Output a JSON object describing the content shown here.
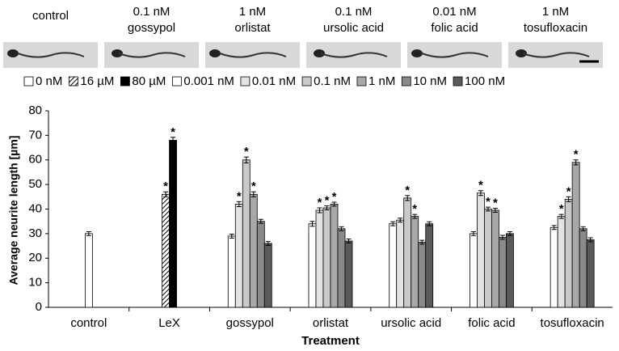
{
  "image_panels": [
    {
      "label": [
        "control"
      ]
    },
    {
      "label": [
        "0.1 nM",
        "gossypol"
      ]
    },
    {
      "label": [
        "1 nM",
        "orlistat"
      ]
    },
    {
      "label": [
        "0.1 nM",
        "ursolic acid"
      ]
    },
    {
      "label": [
        "0.01 nM",
        "folic acid"
      ]
    },
    {
      "label": [
        "1 nM",
        "tosufloxacin"
      ]
    }
  ],
  "chart_data": {
    "type": "bar",
    "x_label": "Treatment",
    "y_label": "Average neurite length [µm]",
    "categories": [
      "control",
      "LeX",
      "gossypol",
      "orlistat",
      "ursolic acid",
      "folic acid",
      "tosufloxacin"
    ],
    "ylim": [
      0,
      80
    ],
    "yticks": [
      0,
      10,
      20,
      30,
      40,
      50,
      60,
      70,
      80
    ],
    "grid": false,
    "series": [
      {
        "name": "0 nM",
        "color": "#ffffff",
        "values": [
          30,
          null,
          null,
          null,
          null,
          null,
          null
        ],
        "errors": [
          0.8,
          null,
          null,
          null,
          null,
          null,
          null
        ],
        "annotations": [
          null,
          null,
          null,
          null,
          null,
          null,
          null
        ]
      },
      {
        "name": "16 µM",
        "color": "#000000",
        "pattern": "hatched",
        "values": [
          null,
          46,
          null,
          null,
          null,
          null,
          null
        ],
        "errors": [
          null,
          1,
          null,
          null,
          null,
          null,
          null
        ],
        "annotations": [
          null,
          "*",
          null,
          null,
          null,
          null,
          null
        ]
      },
      {
        "name": "80 µM",
        "color": "#000000",
        "values": [
          null,
          68,
          null,
          null,
          null,
          null,
          null
        ],
        "errors": [
          null,
          1.2,
          null,
          null,
          null,
          null,
          null
        ],
        "annotations": [
          null,
          "*",
          null,
          null,
          null,
          null,
          null
        ]
      },
      {
        "name": "0.001 nM",
        "color": "#ffffff",
        "values": [
          null,
          null,
          29,
          34,
          34,
          30,
          32.5
        ],
        "errors": [
          null,
          null,
          0.8,
          1,
          0.8,
          0.8,
          0.8
        ],
        "annotations": [
          null,
          null,
          null,
          null,
          null,
          null,
          null
        ]
      },
      {
        "name": "0.01 nM",
        "color": "#e3e3e3",
        "values": [
          null,
          null,
          42,
          39.5,
          35.5,
          46.5,
          37
        ],
        "errors": [
          null,
          null,
          1,
          1,
          0.8,
          1,
          0.8
        ],
        "annotations": [
          null,
          null,
          "*",
          "*",
          null,
          "*",
          "*"
        ]
      },
      {
        "name": "0.1 nM",
        "color": "#c9c9c9",
        "values": [
          null,
          null,
          60,
          40.5,
          44.5,
          40,
          44
        ],
        "errors": [
          null,
          null,
          1.2,
          0.8,
          1,
          0.8,
          1
        ],
        "annotations": [
          null,
          null,
          "*",
          "*",
          "*",
          "*",
          "*"
        ]
      },
      {
        "name": "1 nM",
        "color": "#a8a8a8",
        "values": [
          null,
          null,
          46,
          42,
          37,
          39.5,
          59
        ],
        "errors": [
          null,
          null,
          1,
          0.8,
          0.8,
          0.8,
          1
        ],
        "annotations": [
          null,
          null,
          "*",
          "*",
          "*",
          "*",
          "*"
        ]
      },
      {
        "name": "10 nM",
        "color": "#8a8a8a",
        "values": [
          null,
          null,
          35,
          32,
          26.5,
          28.5,
          32
        ],
        "errors": [
          null,
          null,
          0.8,
          0.8,
          0.8,
          0.8,
          0.8
        ],
        "annotations": [
          null,
          null,
          null,
          null,
          null,
          null,
          null
        ]
      },
      {
        "name": "100 nM",
        "color": "#5a5a5a",
        "values": [
          null,
          null,
          26,
          27,
          34,
          30,
          27.5
        ],
        "errors": [
          null,
          null,
          0.8,
          0.8,
          0.8,
          0.8,
          0.8
        ],
        "annotations": [
          null,
          null,
          null,
          null,
          null,
          null,
          null
        ]
      }
    ]
  }
}
